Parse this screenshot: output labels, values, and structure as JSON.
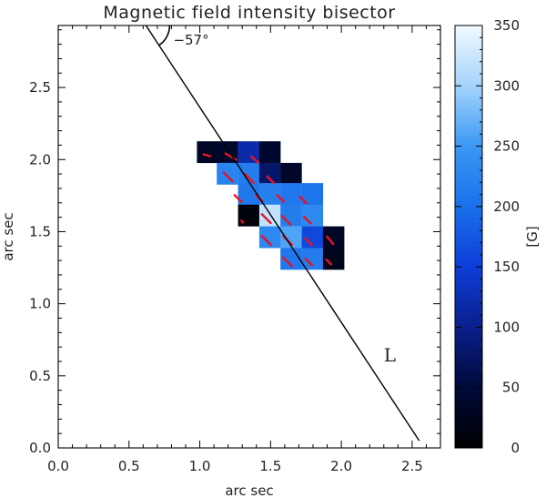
{
  "chart_data": {
    "type": "heatmap",
    "title": "Magnetic field intensity bisector",
    "xlabel": "arc sec",
    "ylabel": "arc sec",
    "xlim": [
      0.0,
      2.7
    ],
    "ylim": [
      0.0,
      2.93
    ],
    "x_ticks": [
      "0.0",
      "0.5",
      "1.0",
      "1.5",
      "2.0",
      "2.5"
    ],
    "y_ticks": [
      "0.0",
      "0.5",
      "1.0",
      "1.5",
      "2.0",
      "2.5"
    ],
    "grid": false,
    "pixel_size": 0.147,
    "colorbar": {
      "label": "[G]",
      "range": [
        0,
        350
      ],
      "ticks": [
        "0",
        "50",
        "100",
        "150",
        "200",
        "250",
        "300",
        "350"
      ],
      "colormap": [
        "#000000",
        "#000a3a",
        "#0a1f8c",
        "#0d3ed8",
        "#1a70ea",
        "#3a98f4",
        "#a4d4fb",
        "#f2f9ff"
      ]
    },
    "pixels": [
      {
        "x": 0.98,
        "y": 1.98,
        "value": 30
      },
      {
        "x": 1.12,
        "y": 1.98,
        "value": 40
      },
      {
        "x": 1.27,
        "y": 1.98,
        "value": 120
      },
      {
        "x": 1.42,
        "y": 1.98,
        "value": 40
      },
      {
        "x": 1.12,
        "y": 1.83,
        "value": 225
      },
      {
        "x": 1.27,
        "y": 1.83,
        "value": 215
      },
      {
        "x": 1.42,
        "y": 1.83,
        "value": 80
      },
      {
        "x": 1.57,
        "y": 1.83,
        "value": 35
      },
      {
        "x": 1.27,
        "y": 1.69,
        "value": 210
      },
      {
        "x": 1.42,
        "y": 1.69,
        "value": 220
      },
      {
        "x": 1.57,
        "y": 1.69,
        "value": 210
      },
      {
        "x": 1.72,
        "y": 1.69,
        "value": 205
      },
      {
        "x": 1.27,
        "y": 1.54,
        "value": 10
      },
      {
        "x": 1.42,
        "y": 1.54,
        "value": 320
      },
      {
        "x": 1.57,
        "y": 1.54,
        "value": 215
      },
      {
        "x": 1.72,
        "y": 1.54,
        "value": 230
      },
      {
        "x": 1.42,
        "y": 1.39,
        "value": 230
      },
      {
        "x": 1.57,
        "y": 1.39,
        "value": 260
      },
      {
        "x": 1.72,
        "y": 1.39,
        "value": 160
      },
      {
        "x": 1.87,
        "y": 1.39,
        "value": 30
      },
      {
        "x": 1.57,
        "y": 1.24,
        "value": 210
      },
      {
        "x": 1.72,
        "y": 1.24,
        "value": 215
      },
      {
        "x": 1.87,
        "y": 1.24,
        "value": 25
      }
    ],
    "vectors": [
      {
        "x": 1.05,
        "y": 2.03,
        "angle": -15,
        "length": 0.06
      },
      {
        "x": 1.22,
        "y": 2.02,
        "angle": -30,
        "length": 0.1
      },
      {
        "x": 1.39,
        "y": 2.0,
        "angle": -40,
        "length": 0.08
      },
      {
        "x": 1.2,
        "y": 1.88,
        "angle": -45,
        "length": 0.1
      },
      {
        "x": 1.35,
        "y": 1.87,
        "angle": -45,
        "length": 0.1
      },
      {
        "x": 1.5,
        "y": 1.86,
        "angle": -45,
        "length": 0.08
      },
      {
        "x": 1.27,
        "y": 1.73,
        "angle": -45,
        "length": 0.08
      },
      {
        "x": 1.42,
        "y": 1.73,
        "angle": -45,
        "length": 0.08
      },
      {
        "x": 1.57,
        "y": 1.73,
        "angle": -45,
        "length": 0.08
      },
      {
        "x": 1.73,
        "y": 1.72,
        "angle": -45,
        "length": 0.08
      },
      {
        "x": 1.3,
        "y": 1.57,
        "angle": -50,
        "length": 0.03
      },
      {
        "x": 1.47,
        "y": 1.59,
        "angle": -45,
        "length": 0.1
      },
      {
        "x": 1.61,
        "y": 1.58,
        "angle": -45,
        "length": 0.1
      },
      {
        "x": 1.76,
        "y": 1.58,
        "angle": -45,
        "length": 0.08
      },
      {
        "x": 1.47,
        "y": 1.44,
        "angle": -45,
        "length": 0.1
      },
      {
        "x": 1.62,
        "y": 1.44,
        "angle": -45,
        "length": 0.1
      },
      {
        "x": 1.77,
        "y": 1.43,
        "angle": -45,
        "length": 0.08
      },
      {
        "x": 1.92,
        "y": 1.44,
        "angle": -50,
        "length": 0.08
      },
      {
        "x": 1.62,
        "y": 1.29,
        "angle": -45,
        "length": 0.1
      },
      {
        "x": 1.77,
        "y": 1.29,
        "angle": -45,
        "length": 0.08
      },
      {
        "x": 1.91,
        "y": 1.29,
        "angle": -45,
        "length": 0.06
      }
    ],
    "vector_color": "#e8141e",
    "bisector": {
      "x1": 0.62,
      "y1": 2.93,
      "x2": 2.55,
      "y2": 0.05,
      "angle_label": "−57°",
      "line_label": "L"
    }
  }
}
